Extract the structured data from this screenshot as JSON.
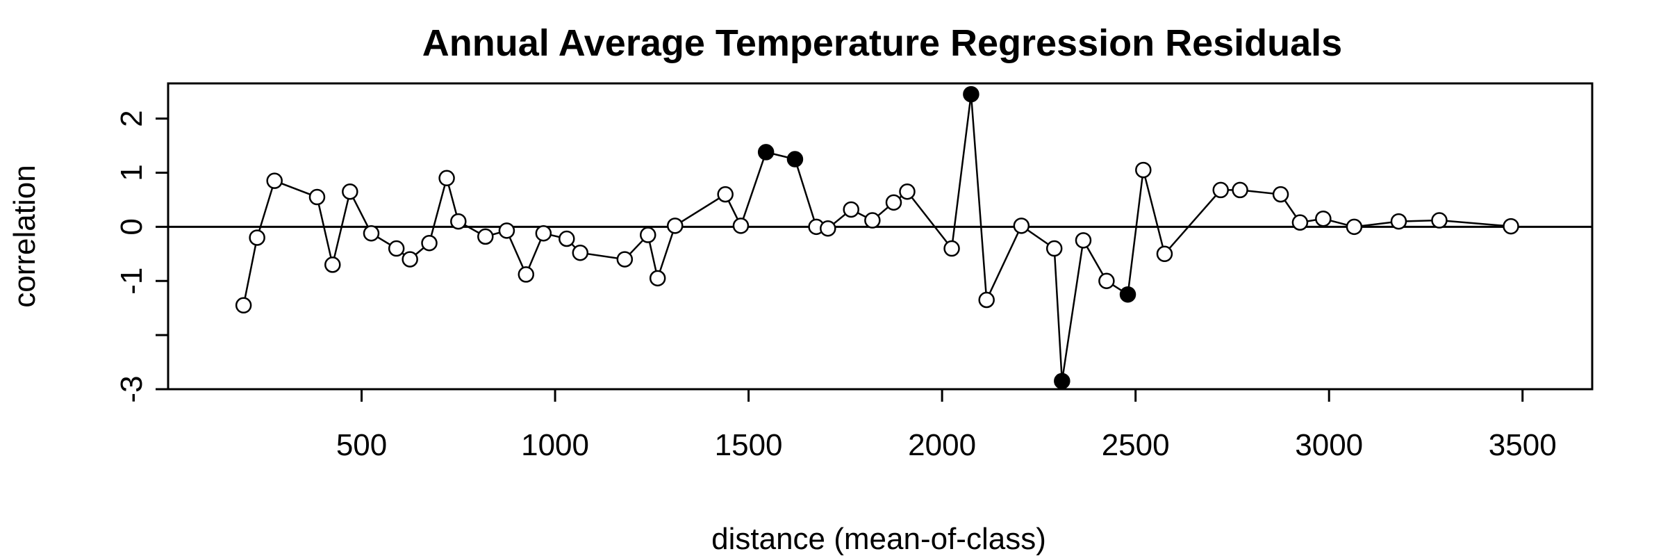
{
  "chart_data": {
    "type": "line",
    "title": "Annual Average Temperature Regression Residuals",
    "xlabel": "distance (mean-of-class)",
    "ylabel": "correlation",
    "xlim": [
      0,
      3680
    ],
    "ylim": [
      -3.0,
      2.65
    ],
    "x_ticks": [
      500,
      1000,
      1500,
      2000,
      2500,
      3000,
      3500
    ],
    "x_tick_labels": [
      "500",
      "1000",
      "1500",
      "2000",
      "2500",
      "3000",
      "3500"
    ],
    "y_ticks": [
      -3,
      -2,
      -1,
      0,
      1,
      2
    ],
    "y_tick_labels": [
      "-3",
      "",
      "-1",
      "0",
      "1",
      "2"
    ],
    "reference_line_y": 0,
    "grid": false,
    "legend": "none",
    "series": [
      {
        "points": [
          {
            "x": 195,
            "y": -1.45,
            "filled": false
          },
          {
            "x": 230,
            "y": -0.2,
            "filled": false
          },
          {
            "x": 275,
            "y": 0.85,
            "filled": false
          },
          {
            "x": 385,
            "y": 0.55,
            "filled": false
          },
          {
            "x": 425,
            "y": -0.7,
            "filled": false
          },
          {
            "x": 470,
            "y": 0.65,
            "filled": false
          },
          {
            "x": 525,
            "y": -0.12,
            "filled": false
          },
          {
            "x": 590,
            "y": -0.4,
            "filled": false
          },
          {
            "x": 625,
            "y": -0.6,
            "filled": false
          },
          {
            "x": 675,
            "y": -0.3,
            "filled": false
          },
          {
            "x": 720,
            "y": 0.9,
            "filled": false
          },
          {
            "x": 750,
            "y": 0.1,
            "filled": false
          },
          {
            "x": 820,
            "y": -0.18,
            "filled": false
          },
          {
            "x": 875,
            "y": -0.07,
            "filled": false
          },
          {
            "x": 925,
            "y": -0.88,
            "filled": false
          },
          {
            "x": 970,
            "y": -0.12,
            "filled": false
          },
          {
            "x": 1030,
            "y": -0.22,
            "filled": false
          },
          {
            "x": 1065,
            "y": -0.48,
            "filled": false
          },
          {
            "x": 1180,
            "y": -0.6,
            "filled": false
          },
          {
            "x": 1240,
            "y": -0.15,
            "filled": false
          },
          {
            "x": 1265,
            "y": -0.95,
            "filled": false
          },
          {
            "x": 1310,
            "y": 0.02,
            "filled": false
          },
          {
            "x": 1440,
            "y": 0.6,
            "filled": false
          },
          {
            "x": 1480,
            "y": 0.02,
            "filled": false
          },
          {
            "x": 1545,
            "y": 1.38,
            "filled": true
          },
          {
            "x": 1620,
            "y": 1.25,
            "filled": true
          },
          {
            "x": 1675,
            "y": 0.0,
            "filled": false
          },
          {
            "x": 1705,
            "y": -0.03,
            "filled": false
          },
          {
            "x": 1765,
            "y": 0.32,
            "filled": false
          },
          {
            "x": 1820,
            "y": 0.12,
            "filled": false
          },
          {
            "x": 1875,
            "y": 0.45,
            "filled": false
          },
          {
            "x": 1910,
            "y": 0.65,
            "filled": false
          },
          {
            "x": 2025,
            "y": -0.4,
            "filled": false
          },
          {
            "x": 2075,
            "y": 2.45,
            "filled": true
          },
          {
            "x": 2115,
            "y": -1.35,
            "filled": false
          },
          {
            "x": 2205,
            "y": 0.02,
            "filled": false
          },
          {
            "x": 2290,
            "y": -0.4,
            "filled": false
          },
          {
            "x": 2310,
            "y": -2.85,
            "filled": true
          },
          {
            "x": 2365,
            "y": -0.25,
            "filled": false
          },
          {
            "x": 2425,
            "y": -1.0,
            "filled": false
          },
          {
            "x": 2480,
            "y": -1.25,
            "filled": true
          },
          {
            "x": 2520,
            "y": 1.05,
            "filled": false
          },
          {
            "x": 2575,
            "y": -0.5,
            "filled": false
          },
          {
            "x": 2720,
            "y": 0.68,
            "filled": false
          },
          {
            "x": 2770,
            "y": 0.68,
            "filled": false
          },
          {
            "x": 2875,
            "y": 0.6,
            "filled": false
          },
          {
            "x": 2925,
            "y": 0.08,
            "filled": false
          },
          {
            "x": 2985,
            "y": 0.15,
            "filled": false
          },
          {
            "x": 3065,
            "y": 0.0,
            "filled": false
          },
          {
            "x": 3180,
            "y": 0.1,
            "filled": false
          },
          {
            "x": 3285,
            "y": 0.12,
            "filled": false
          },
          {
            "x": 3470,
            "y": 0.01,
            "filled": false
          }
        ]
      }
    ]
  }
}
